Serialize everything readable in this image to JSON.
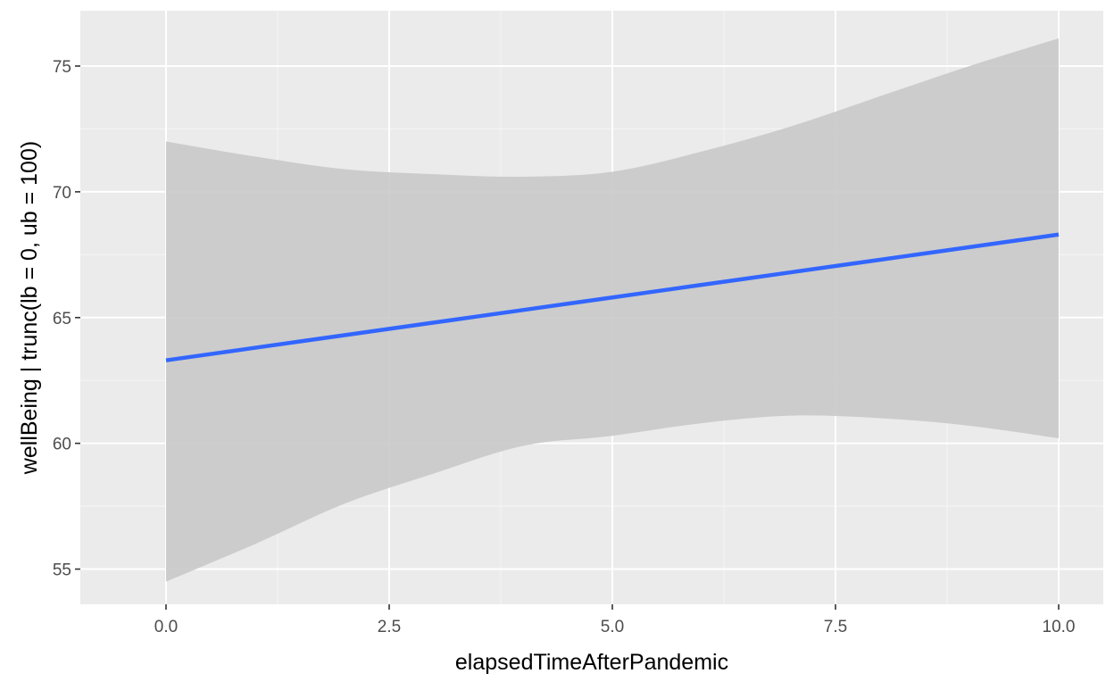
{
  "chart_data": {
    "type": "line",
    "title": "",
    "xlabel": "elapsedTimeAfterPandemic",
    "ylabel": "wellBeing | trunc(lb = 0, ub = 100)",
    "xlim": [
      -0.96,
      10.5
    ],
    "ylim": [
      53.6,
      77.2
    ],
    "x_ticks": [
      0.0,
      2.5,
      5.0,
      7.5,
      10.0
    ],
    "x_tick_labels": [
      "0.0",
      "2.5",
      "5.0",
      "7.5",
      "10.0"
    ],
    "y_ticks": [
      55,
      60,
      65,
      70,
      75
    ],
    "y_tick_labels": [
      "55",
      "60",
      "65",
      "70",
      "75"
    ],
    "grid": true,
    "legend": "none",
    "colors": {
      "panel": "#ebebeb",
      "grid_major": "#ffffff",
      "grid_minor": "#f5f5f5",
      "ribbon": "#c9c9c9",
      "line": "#3366ff",
      "tick_text": "#4d4d4d",
      "axis_title": "#000000"
    },
    "series": [
      {
        "type": "line",
        "x": [
          0,
          1,
          2,
          3,
          4,
          5,
          6,
          7,
          8,
          9,
          10
        ],
        "values": [
          63.3,
          63.8,
          64.3,
          64.8,
          65.3,
          65.8,
          66.3,
          66.8,
          67.3,
          67.8,
          68.3
        ]
      }
    ],
    "confidence_band": {
      "x": [
        0,
        1,
        2,
        3,
        4,
        5,
        6,
        7,
        8,
        9,
        10
      ],
      "lower": [
        54.5,
        56.0,
        57.6,
        58.8,
        59.9,
        60.3,
        60.8,
        61.1,
        61.0,
        60.7,
        60.2
      ],
      "upper": [
        72.0,
        71.4,
        70.9,
        70.7,
        70.6,
        70.8,
        71.6,
        72.6,
        73.8,
        75.0,
        76.1
      ]
    }
  }
}
